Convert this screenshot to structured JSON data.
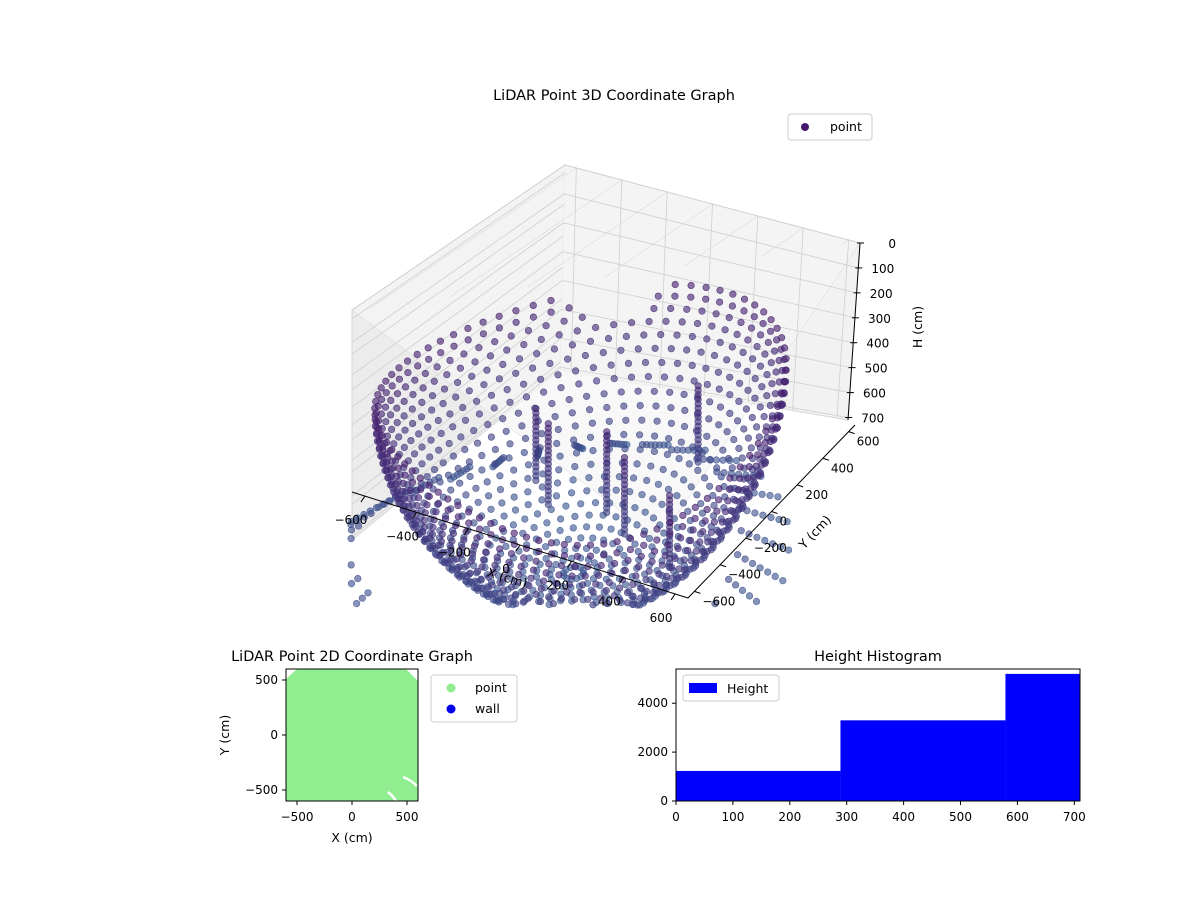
{
  "chart_data": [
    {
      "type": "scatter3d",
      "title": "LiDAR Point 3D Coordinate Graph",
      "xlabel": "X (cm)",
      "ylabel": "Y (cm)",
      "zlabel": "H (cm)",
      "xlim": [
        -650,
        650
      ],
      "ylim": [
        -650,
        650
      ],
      "zlim": [
        0,
        710
      ],
      "zinverted": true,
      "x_ticks": [
        -600,
        -400,
        -200,
        0,
        200,
        400,
        600
      ],
      "y_ticks": [
        -600,
        -400,
        -200,
        0,
        200,
        400,
        600
      ],
      "z_ticks": [
        0,
        100,
        200,
        300,
        400,
        500,
        600,
        700
      ],
      "x_tick_labels": [
        "−600",
        "−400",
        "−200",
        "0",
        "200",
        "400",
        "600"
      ],
      "y_tick_labels": [
        "−600",
        "−400",
        "−200",
        "0",
        "200",
        "400",
        "600"
      ],
      "z_tick_labels": [
        "0",
        "100",
        "200",
        "300",
        "400",
        "500",
        "600",
        "700"
      ],
      "legend": {
        "entries": [
          {
            "label": "point",
            "color": "#46186b"
          }
        ],
        "placement": "upper-right"
      },
      "colors": {
        "high": "#46186b",
        "low": "#3b5a93",
        "pane": "#f2f2f2",
        "grid": "#cfcfcf"
      },
      "grid": true
    },
    {
      "type": "scatter",
      "title": "LiDAR Point 2D Coordinate Graph",
      "xlabel": "X (cm)",
      "ylabel": "Y (cm)",
      "xlim": [
        -600,
        600
      ],
      "ylim": [
        -600,
        600
      ],
      "x_ticks": [
        -500,
        0,
        500
      ],
      "y_ticks": [
        -500,
        0,
        500
      ],
      "x_tick_labels": [
        "−500",
        "0",
        "500"
      ],
      "y_tick_labels": [
        "−500",
        "0",
        "500"
      ],
      "series": [
        {
          "name": "point",
          "color": "#90ee90"
        },
        {
          "name": "wall",
          "color": "#0000ee"
        }
      ],
      "legend": {
        "placement": "outside-right"
      }
    },
    {
      "type": "histogram",
      "title": "Height Histogram",
      "xlim": [
        0,
        710
      ],
      "ylim": [
        0,
        5400
      ],
      "x_ticks": [
        0,
        100,
        200,
        300,
        400,
        500,
        600,
        700
      ],
      "y_ticks": [
        0,
        2000,
        4000
      ],
      "x_tick_labels": [
        "0",
        "100",
        "200",
        "300",
        "400",
        "500",
        "600",
        "700"
      ],
      "y_tick_labels": [
        "0",
        "2000",
        "4000"
      ],
      "bins": [
        {
          "start": 0,
          "end": 289,
          "count": 1230
        },
        {
          "start": 289,
          "end": 579,
          "count": 3300
        },
        {
          "start": 579,
          "end": 710,
          "count": 5200
        }
      ],
      "series": [
        {
          "name": "Height",
          "color": "#0000ff"
        }
      ],
      "legend": {
        "placement": "upper-left"
      }
    }
  ]
}
